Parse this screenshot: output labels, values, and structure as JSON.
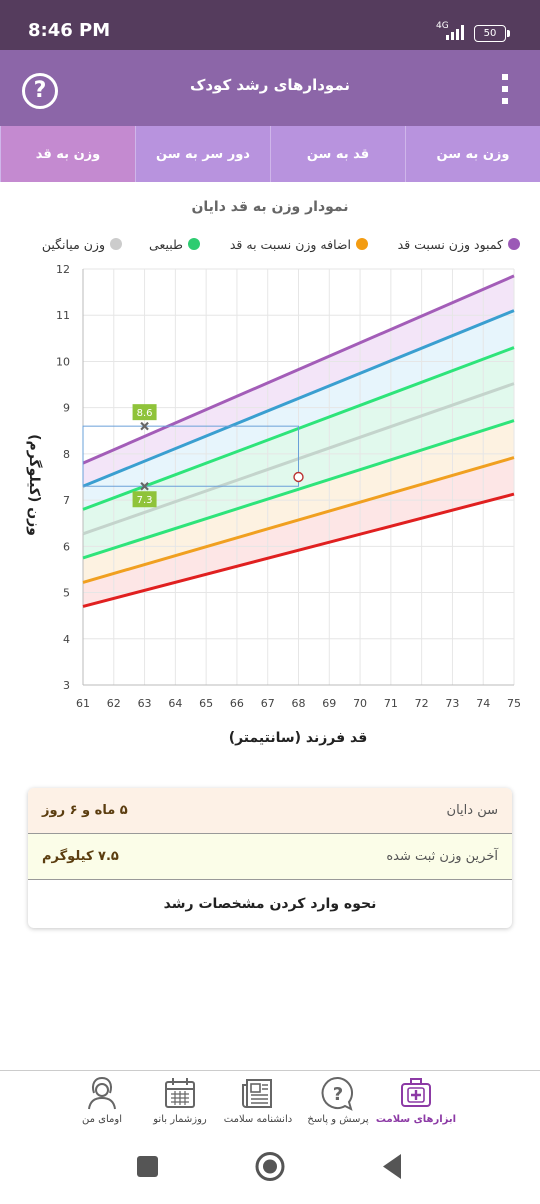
{
  "status_bar": {
    "time": "8:46 PM",
    "network": "4G",
    "battery": "50"
  },
  "app_bar": {
    "title": "نمودارهای رشد کودک"
  },
  "tabs": [
    {
      "label": "وزن به سن",
      "active": false
    },
    {
      "label": "قد به سن",
      "active": false
    },
    {
      "label": "دور سر به سن",
      "active": false
    },
    {
      "label": "وزن به قد",
      "active": true
    }
  ],
  "chart": {
    "title": "نمودار وزن به قد دایان",
    "legend": [
      {
        "label": "کمبود وزن نسبت قد",
        "color": "#9b59b6"
      },
      {
        "label": "اضافه وزن نسبت به قد",
        "color": "#f39c12"
      },
      {
        "label": "طبیعی",
        "color": "#2ecc71"
      },
      {
        "label": "وزن میانگین",
        "color": "#cccccc"
      }
    ]
  },
  "chart_data": {
    "type": "line",
    "title": "نمودار وزن به قد دایان",
    "xlabel": "قد فرزند (سانتیمتر)",
    "ylabel": "وزن (کیلوگرم)",
    "xlim": [
      61,
      75
    ],
    "ylim": [
      3,
      12
    ],
    "x_ticks": [
      61,
      62,
      63,
      64,
      65,
      66,
      67,
      68,
      69,
      70,
      71,
      72,
      73,
      74,
      75
    ],
    "y_ticks": [
      3,
      4,
      5,
      6,
      7,
      8,
      9,
      10,
      11,
      12
    ],
    "grid": true,
    "series": [
      {
        "color": "#a35db8",
        "x": [
          61,
          75
        ],
        "y": [
          7.8,
          11.85
        ]
      },
      {
        "color": "#3a9fd0",
        "x": [
          61,
          75
        ],
        "y": [
          7.3,
          11.1
        ]
      },
      {
        "color": "#2ee47a",
        "x": [
          61,
          75
        ],
        "y": [
          6.8,
          10.3
        ]
      },
      {
        "color": "#c4d4cc",
        "x": [
          61,
          75
        ],
        "y": [
          6.27,
          9.52
        ]
      },
      {
        "color": "#2ee47a",
        "x": [
          61,
          75
        ],
        "y": [
          5.75,
          8.72
        ]
      },
      {
        "color": "#f0a020",
        "x": [
          61,
          75
        ],
        "y": [
          5.22,
          7.92
        ]
      },
      {
        "color": "#e02020",
        "x": [
          61,
          75
        ],
        "y": [
          4.7,
          7.13
        ]
      }
    ],
    "band_fills": [
      "#f1e1f7",
      "#e3f3fb",
      "#dcf8ea",
      "#dcf8ea",
      "#fdf0dc",
      "#fde2e2"
    ],
    "markers": [
      {
        "x": 63,
        "y": 8.6,
        "label": "8.6"
      },
      {
        "x": 63,
        "y": 7.3,
        "label": "7.3"
      }
    ],
    "point": {
      "x": 68,
      "y": 7.5
    }
  },
  "info_card": {
    "rows": [
      {
        "label": "سن دایان",
        "value": "۵ ماه و ۶ روز",
        "bg": "#fdf1e6"
      },
      {
        "label": "آخرین وزن ثبت شده",
        "value": "۷.۵ کیلوگرم",
        "bg": "#fbfde8"
      }
    ],
    "howto": "نحوه وارد کردن مشخصات رشد"
  },
  "bottom_nav": [
    {
      "label": "ابزارهای سلامت",
      "icon": "medical-kit-icon",
      "active": true
    },
    {
      "label": "پرسش و پاسخ",
      "icon": "question-bubble-icon",
      "active": false
    },
    {
      "label": "دانشنامه سلامت",
      "icon": "newspaper-icon",
      "active": false
    },
    {
      "label": "روزشمار بانو",
      "icon": "calendar-icon",
      "active": false
    },
    {
      "label": "اومای من",
      "icon": "profile-icon",
      "active": false
    }
  ]
}
